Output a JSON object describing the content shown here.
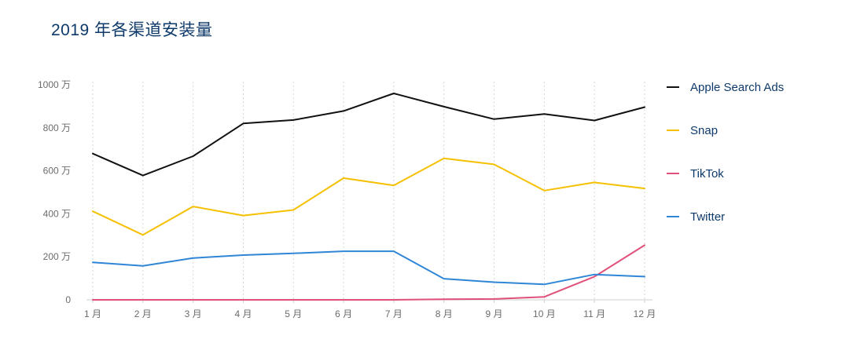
{
  "chart_data": {
    "type": "line",
    "title": "2019 年各渠道安装量",
    "xlabel": "",
    "ylabel": "",
    "categories": [
      "1 月",
      "2 月",
      "3 月",
      "4 月",
      "5 月",
      "6 月",
      "7 月",
      "8 月",
      "9 月",
      "10 月",
      "11 月",
      "12 月"
    ],
    "y_ticks": [
      0,
      200,
      400,
      600,
      800,
      1000
    ],
    "y_tick_labels": [
      "0",
      "200 万",
      "400 万",
      "600 万",
      "800 万",
      "1000 万"
    ],
    "ylim": [
      0,
      1000
    ],
    "grid": "vertical-dotted",
    "legend_position": "right",
    "series": [
      {
        "name": "Apple Search Ads",
        "color": "#111111",
        "values": [
          680,
          578,
          668,
          820,
          836,
          878,
          960,
          898,
          840,
          864,
          834,
          896
        ]
      },
      {
        "name": "Snap",
        "color": "#f5c000",
        "values": [
          412,
          302,
          434,
          392,
          418,
          566,
          532,
          658,
          630,
          508,
          546,
          518
        ]
      },
      {
        "name": "TikTok",
        "color": "#e0507a",
        "values": [
          0,
          0,
          0,
          0,
          0,
          0,
          0,
          3,
          4,
          14,
          108,
          254
        ]
      },
      {
        "name": "Twitter",
        "color": "#2f86d6",
        "values": [
          174,
          158,
          194,
          208,
          216,
          226,
          226,
          98,
          82,
          72,
          118,
          108
        ]
      }
    ]
  }
}
